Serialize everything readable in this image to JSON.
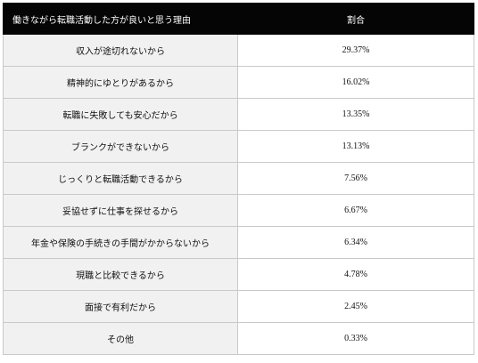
{
  "table": {
    "headers": {
      "reason": "働きながら転職活動した方が良いと思う理由",
      "percentage": "割合"
    },
    "rows": [
      {
        "reason": "収入が途切れないから",
        "percentage": "29.37%"
      },
      {
        "reason": "精神的にゆとりがあるから",
        "percentage": "16.02%"
      },
      {
        "reason": "転職に失敗しても安心だから",
        "percentage": "13.35%"
      },
      {
        "reason": "ブランクができないから",
        "percentage": "13.13%"
      },
      {
        "reason": "じっくりと転職活動できるから",
        "percentage": "7.56%"
      },
      {
        "reason": "妥協せずに仕事を探せるから",
        "percentage": "6.67%"
      },
      {
        "reason": "年金や保険の手続きの手間がかからないから",
        "percentage": "6.34%"
      },
      {
        "reason": "現職と比較できるから",
        "percentage": "4.78%"
      },
      {
        "reason": "面接で有利だから",
        "percentage": "2.45%"
      },
      {
        "reason": "その他",
        "percentage": "0.33%"
      }
    ]
  },
  "colors": {
    "header_background": "#050505",
    "header_text": "#ffffff",
    "reason_cell_background": "#f1f1f1",
    "value_cell_background": "#ffffff",
    "border": "#c9c9c9"
  }
}
